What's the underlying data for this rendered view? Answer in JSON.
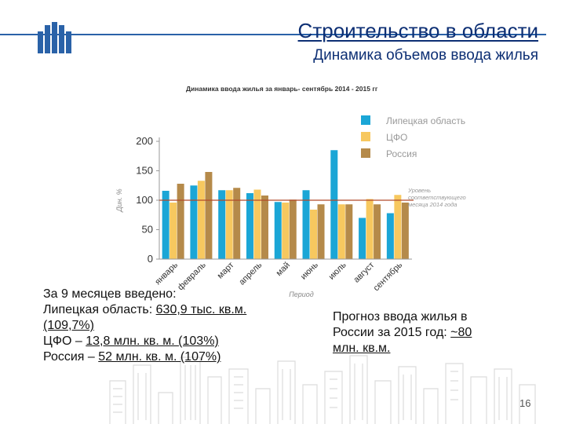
{
  "header": {
    "title": "Строительство в области",
    "subtitle": "Динамика объемов ввода жилья"
  },
  "chart_data": {
    "type": "bar",
    "title": "Динамика ввода жилья за январь- сентябрь 2014 - 2015 гг",
    "xlabel": "Период",
    "ylabel": "Дин. %",
    "ylim": [
      0,
      200
    ],
    "yticks": [
      0,
      50,
      100,
      150,
      200
    ],
    "categories": [
      "январь",
      "февраль",
      "март",
      "апрель",
      "май",
      "июнь",
      "июль",
      "август",
      "сентябрь"
    ],
    "series": [
      {
        "name": "Липецкая область",
        "color": "#1ba6d6",
        "values": [
          116,
          125,
          117,
          112,
          97,
          117,
          185,
          70,
          78
        ]
      },
      {
        "name": "ЦФО",
        "color": "#f7c85f",
        "values": [
          96,
          133,
          117,
          118,
          96,
          84,
          93,
          102,
          109
        ]
      },
      {
        "name": "Россия",
        "color": "#b58a4a",
        "values": [
          128,
          148,
          121,
          108,
          101,
          93,
          93,
          93,
          96
        ]
      }
    ],
    "reference_line": {
      "value": 100,
      "label": "Уровень соответствующего месяца 2014 года",
      "color": "#b24a2a"
    },
    "legend_position": "top-right",
    "grid": false
  },
  "left_text": {
    "line1": "За 9 месяцев введено:",
    "line2_prefix": "Липецкая область: ",
    "line2_value": "630,9 тыс. кв.м.",
    "line3": "(109,7%)",
    "line4_prefix": "ЦФО – ",
    "line4_value": "13,8 млн. кв. м. (103%)",
    "line5_prefix": "Россия – ",
    "line5_value": "52 млн. кв. м. (107%)"
  },
  "right_text": {
    "line1": "Прогноз ввода жилья в",
    "line2_prefix": "России за 2015 год: ",
    "line2_value": "~80",
    "line3": "млн. кв.м."
  },
  "page_number": "16",
  "colors": {
    "accent": "#2a62a8",
    "title": "#0d2f74"
  }
}
